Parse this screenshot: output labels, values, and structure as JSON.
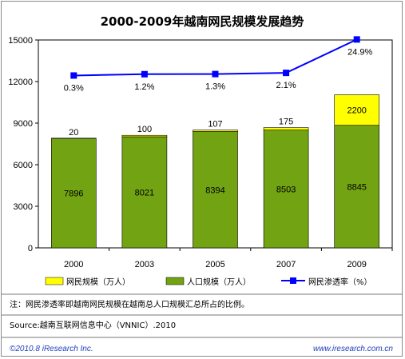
{
  "chart_data": {
    "type": "bar",
    "title": "2000-2009年越南网民规模发展趋势",
    "categories": [
      "2000",
      "2003",
      "2005",
      "2007",
      "2009"
    ],
    "ylim": [
      0,
      15000
    ],
    "yticks": [
      "0",
      "3000",
      "6000",
      "9000",
      "12000",
      "15000"
    ],
    "stacked": true,
    "series": [
      {
        "name": "人口规模（万人）",
        "values": [
          7896,
          8021,
          8394,
          8503,
          8845
        ],
        "color": "#71a312"
      },
      {
        "name": "网民规模（万人）",
        "values": [
          20,
          100,
          107,
          175,
          2200
        ],
        "color": "#ffff00"
      }
    ],
    "line_series": {
      "name": "网民渗透率（%）",
      "values": [
        0.3,
        1.2,
        1.3,
        2.1,
        24.9
      ],
      "labels": [
        "0.3%",
        "1.2%",
        "1.3%",
        "2.1%",
        "24.9%"
      ],
      "color": "#0000ff"
    },
    "grid": false,
    "legend": "bottom"
  },
  "legend": {
    "netizens": "网民规模（万人）",
    "population": "人口规模（万人）",
    "penetration": "网民渗透率（%）"
  },
  "note": "注：网民渗透率即越南网民规模在越南总人口规模汇总所占的比例。",
  "source": "Source:越南互联网信息中心（VNNIC）.2010",
  "footer": {
    "copyright": "©2010.8 iResearch Inc.",
    "website": "www.iresearch.com.cn"
  }
}
